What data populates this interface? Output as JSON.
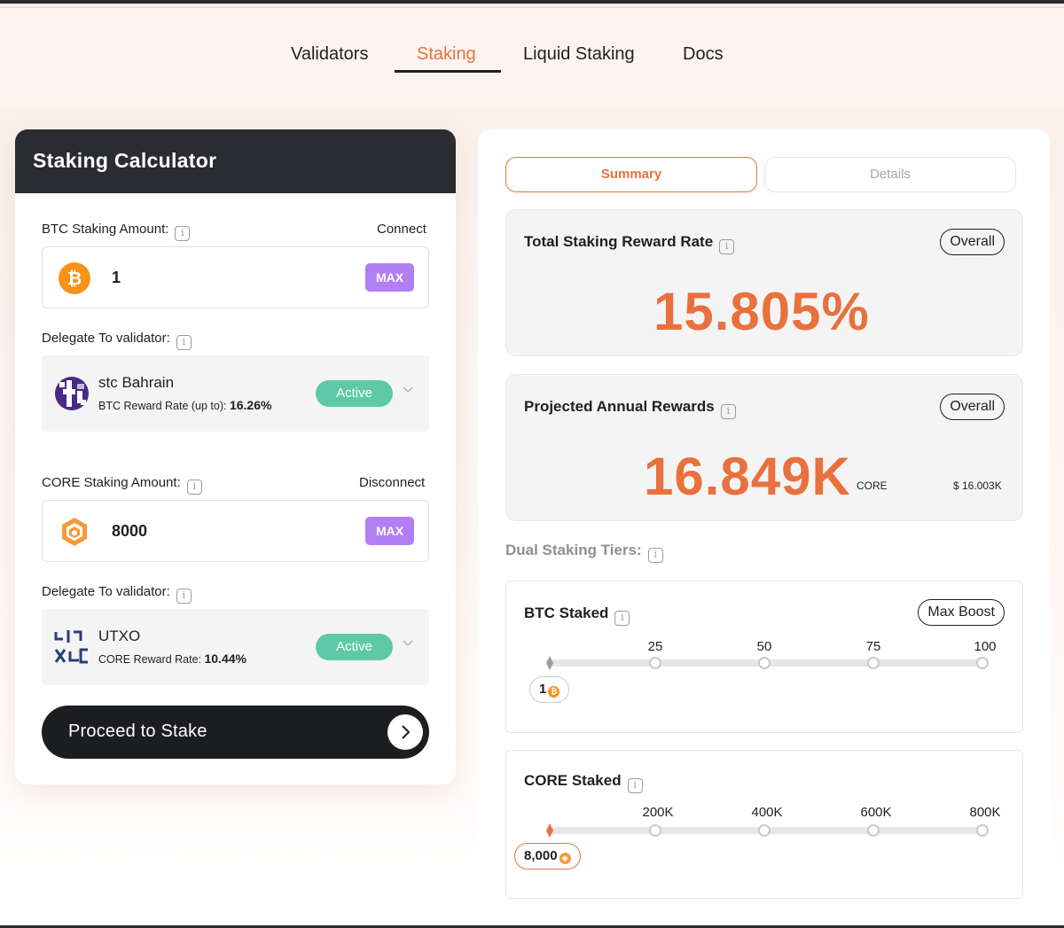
{
  "nav": {
    "items": [
      {
        "label": "Validators"
      },
      {
        "label": "Staking"
      },
      {
        "label": "Liquid Staking"
      },
      {
        "label": "Docs"
      }
    ],
    "active": "Staking"
  },
  "calculator": {
    "title": "Staking Calculator",
    "btc": {
      "label": "BTC Staking Amount:",
      "link": "Connect",
      "value": "1",
      "max": "MAX",
      "coin_icon": "bitcoin-icon"
    },
    "btc_validator": {
      "label": "Delegate To validator:",
      "name": "stc Bahrain",
      "rate_label": "BTC Reward Rate (up to): ",
      "rate": "16.26%",
      "status": "Active"
    },
    "core": {
      "label": "CORE Staking Amount:",
      "link": "Disconnect",
      "value": "8000",
      "max": "MAX",
      "coin_icon": "core-icon"
    },
    "core_validator": {
      "label": "Delegate To validator:",
      "name": "UTXO",
      "rate_label": "CORE Reward Rate: ",
      "rate": "10.44%",
      "status": "Active"
    },
    "proceed": "Proceed to Stake"
  },
  "summary": {
    "tabs": {
      "summary": "Summary",
      "details": "Details"
    },
    "total_rate": {
      "title": "Total Staking Reward Rate",
      "filter": "Overall",
      "value": "15.805%"
    },
    "projected": {
      "title": "Projected Annual Rewards",
      "filter": "Overall",
      "value": "16.849K",
      "unit": "CORE",
      "usd": "$ 16.003K"
    },
    "tiers_label": "Dual Staking Tiers:",
    "btc_staked": {
      "title": "BTC Staked",
      "button": "Max Boost",
      "ticks": [
        "25",
        "50",
        "75",
        "100"
      ],
      "current": "1"
    },
    "core_staked": {
      "title": "CORE Staked",
      "ticks": [
        "200K",
        "400K",
        "600K",
        "800K"
      ],
      "current": "8,000"
    }
  },
  "colors": {
    "accent": "#e8713d",
    "max_button": "#b27ef3",
    "active": "#5ec9a6",
    "dark": "#2a2c31"
  }
}
